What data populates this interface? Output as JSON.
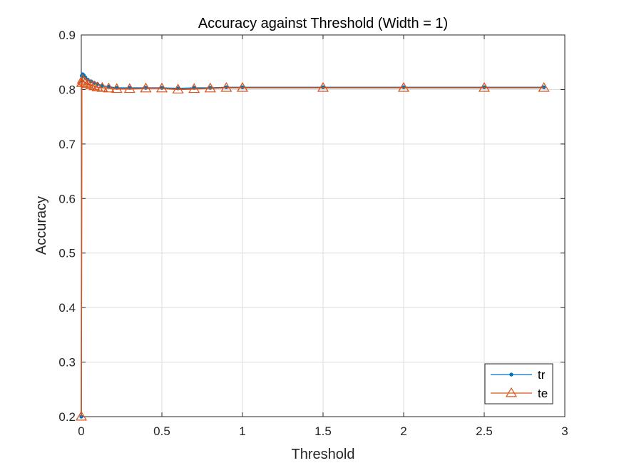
{
  "chart_data": {
    "type": "line",
    "title": "Accuracy against Threshold (Width = 1)",
    "xlabel": "Threshold",
    "ylabel": "Accuracy",
    "xlim": [
      0,
      3
    ],
    "ylim": [
      0.2,
      0.9
    ],
    "xticks": [
      "0",
      "0.5",
      "1",
      "1.5",
      "2",
      "2.5",
      "3"
    ],
    "yticks": [
      "0.2",
      "0.3",
      "0.4",
      "0.5",
      "0.6",
      "0.7",
      "0.8",
      "0.9"
    ],
    "grid": true,
    "legend_position": "bottom-right",
    "series": [
      {
        "name": "tr",
        "color": "#0072BD",
        "marker": "point",
        "x": [
          0,
          0.003,
          0.008,
          0.015,
          0.025,
          0.04,
          0.06,
          0.08,
          0.1,
          0.13,
          0.17,
          0.22,
          0.3,
          0.4,
          0.5,
          0.6,
          0.7,
          0.8,
          0.9,
          1.0,
          1.5,
          2.0,
          2.5,
          2.87
        ],
        "y": [
          0.2,
          0.825,
          0.828,
          0.826,
          0.822,
          0.818,
          0.815,
          0.812,
          0.81,
          0.807,
          0.805,
          0.803,
          0.803,
          0.803,
          0.803,
          0.802,
          0.803,
          0.803,
          0.804,
          0.804,
          0.804,
          0.804,
          0.804,
          0.804
        ]
      },
      {
        "name": "te",
        "color": "#D95319",
        "marker": "triangle",
        "x": [
          0,
          0.003,
          0.008,
          0.015,
          0.025,
          0.04,
          0.06,
          0.08,
          0.1,
          0.13,
          0.17,
          0.22,
          0.3,
          0.4,
          0.5,
          0.6,
          0.7,
          0.8,
          0.9,
          1.0,
          1.5,
          2.0,
          2.5,
          2.87
        ],
        "y": [
          0.2,
          0.812,
          0.818,
          0.815,
          0.812,
          0.81,
          0.808,
          0.806,
          0.804,
          0.803,
          0.802,
          0.801,
          0.801,
          0.802,
          0.802,
          0.8,
          0.801,
          0.802,
          0.803,
          0.803,
          0.803,
          0.803,
          0.803,
          0.803
        ]
      }
    ]
  }
}
